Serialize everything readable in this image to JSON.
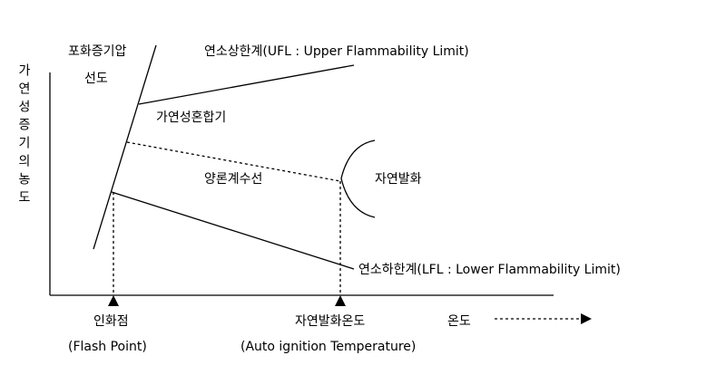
{
  "y_axis_label": "가연성증기의농도",
  "saturation_curve_label": [
    "포화증기압",
    "선도"
  ],
  "ufl_label": "연소상한계(UFL : Upper Flammability Limit)",
  "flammable_mixture_label": "가연성혼합기",
  "stoichiometric_line_label": "양론계수선",
  "autoignition_region_label": "자연발화",
  "lfl_label": "연소하한계(LFL : Lower Flammability Limit)",
  "flash_point_label": [
    "인화점",
    "(Flash Point)"
  ],
  "autoignition_temperature_label": [
    "자연발화온도",
    "(Auto ignition Temperature)"
  ],
  "x_axis_label": "온도"
}
